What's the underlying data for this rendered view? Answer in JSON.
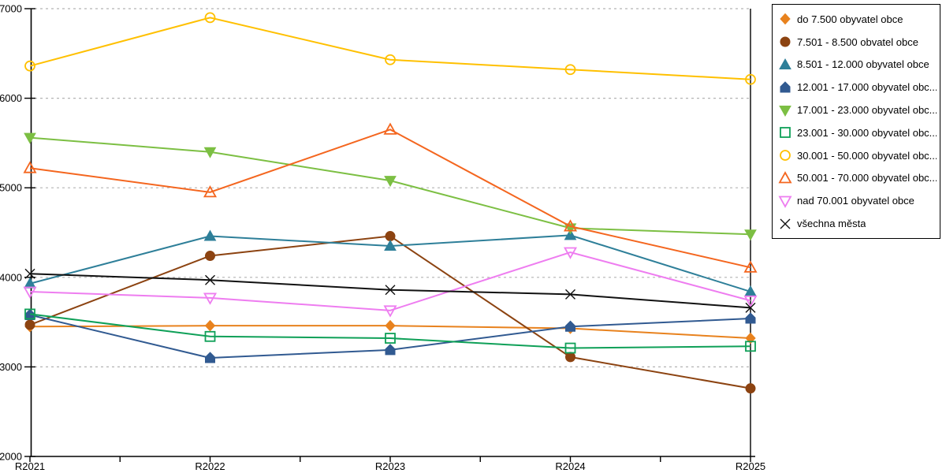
{
  "figure": {
    "background": "#ffffff",
    "grid_color": "#b3b3b3",
    "axis_color": "#000000"
  },
  "chart_data": {
    "type": "line",
    "title": "",
    "xlabel": "",
    "ylabel": "",
    "categories": [
      "R2021",
      "R2022",
      "R2023",
      "R2024",
      "R2025"
    ],
    "ylim": [
      2000,
      7000
    ],
    "ytick_step": 1000,
    "y_tick_labels": [
      "2000",
      "3000",
      "4000",
      "5000",
      "6000",
      "7000"
    ],
    "grid": "horizontal-dashed",
    "legend_position": "outside-top-right",
    "series": [
      {
        "name": "do 7.500 obyvatel obce",
        "legend_label": "do 7.500 obyvatel obce",
        "marker": "diamond",
        "style": "filled",
        "color": "#E8821E",
        "values": [
          3450,
          3460,
          3460,
          3430,
          3320
        ]
      },
      {
        "name": "7.501 - 8.500 obvatel obce",
        "legend_label": "7.501 - 8.500 obvatel obce",
        "marker": "circle",
        "style": "filled",
        "color": "#8C4311",
        "values": [
          3470,
          4240,
          4460,
          3110,
          2760
        ]
      },
      {
        "name": "8.501 - 12.000 obyvatel obce",
        "legend_label": "8.501 - 12.000 obyvatel obce",
        "marker": "triangle-up",
        "style": "filled",
        "color": "#2E7F99",
        "values": [
          3930,
          4460,
          4350,
          4470,
          3840
        ]
      },
      {
        "name": "12.001 - 17.000 obyvatel obce",
        "legend_label": "12.001 - 17.000 obyvatel obc...",
        "marker": "pentagon",
        "style": "filled",
        "color": "#315A91",
        "values": [
          3580,
          3100,
          3190,
          3450,
          3540
        ]
      },
      {
        "name": "17.001 - 23.000 obyvatel obce",
        "legend_label": "17.001 - 23.000 obyvatel obc...",
        "marker": "triangle-down",
        "style": "filled",
        "color": "#7CBF43",
        "values": [
          5560,
          5400,
          5080,
          4550,
          4480
        ]
      },
      {
        "name": "23.001 - 30.000 obyvatel obce",
        "legend_label": "23.001 - 30.000 obyvatel obc...",
        "marker": "square",
        "style": "open",
        "color": "#0FA058",
        "values": [
          3590,
          3340,
          3320,
          3210,
          3230
        ]
      },
      {
        "name": "30.001 - 50.000 obyvatel obce",
        "legend_label": "30.001 - 50.000 obyvatel obc...",
        "marker": "circle",
        "style": "open",
        "color": "#FFC000",
        "values": [
          6360,
          6900,
          6430,
          6320,
          6210
        ]
      },
      {
        "name": "50.001 - 70.000 obyvatel obce",
        "legend_label": "50.001 - 70.000 obyvatel obc...",
        "marker": "triangle-up",
        "style": "open",
        "color": "#F4661F",
        "values": [
          5220,
          4950,
          5650,
          4570,
          4110
        ]
      },
      {
        "name": "nad 70.001 obyvatel obce",
        "legend_label": "nad 70.001 obyvatel obce",
        "marker": "triangle-down",
        "style": "open",
        "color": "#EE7DF0",
        "values": [
          3840,
          3770,
          3630,
          4280,
          3740
        ]
      },
      {
        "name": "všechna města",
        "legend_label": "všechna města",
        "marker": "x",
        "style": "line",
        "color": "#111111",
        "values": [
          4040,
          3970,
          3860,
          3810,
          3660
        ]
      }
    ]
  }
}
